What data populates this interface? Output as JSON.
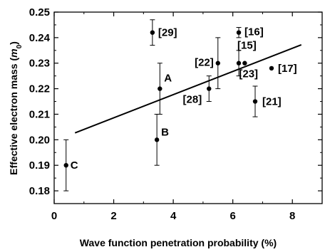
{
  "chart_data": {
    "type": "scatter",
    "xlabel": "Wave function penetration probability (%)",
    "ylabel_main": "Effective electron mass (",
    "ylabel_symbol": "m",
    "ylabel_sub": "0",
    "ylabel_close": ")",
    "xlim": [
      0,
      9
    ],
    "ylim": [
      0.175,
      0.25
    ],
    "xticks": [
      0,
      2,
      4,
      6,
      8
    ],
    "xtick_labels": [
      "0",
      "2",
      "4",
      "6",
      "8"
    ],
    "yticks": [
      0.18,
      0.19,
      0.2,
      0.21,
      0.22,
      0.23,
      0.24,
      0.25
    ],
    "ytick_labels": [
      "0.18",
      "0.19",
      "0.20",
      "0.21",
      "0.22",
      "0.23",
      "0.24",
      "0.25"
    ],
    "points": [
      {
        "x": 0.4,
        "y": 0.19,
        "err": 0.01,
        "label": "C"
      },
      {
        "x": 3.3,
        "y": 0.242,
        "err": 0.005,
        "label": "[29]"
      },
      {
        "x": 3.45,
        "y": 0.2,
        "err": 0.01,
        "label": "B"
      },
      {
        "x": 3.55,
        "y": 0.22,
        "err": 0.01,
        "label": "A"
      },
      {
        "x": 5.2,
        "y": 0.22,
        "err": 0.005,
        "label": "[28]"
      },
      {
        "x": 5.5,
        "y": 0.23,
        "err": 0.01,
        "label": "[22]"
      },
      {
        "x": 6.2,
        "y": 0.242,
        "err": 0.002,
        "label": "[16]"
      },
      {
        "x": 6.2,
        "y": 0.23,
        "err": 0.005,
        "label": "[15]"
      },
      {
        "x": 6.4,
        "y": 0.23,
        "err": 0,
        "label": "[23]"
      },
      {
        "x": 6.75,
        "y": 0.215,
        "err": 0.006,
        "label": "[21]"
      },
      {
        "x": 7.3,
        "y": 0.228,
        "err": 0,
        "label": "[17]"
      }
    ],
    "fit_line": {
      "x": [
        0.7,
        8.3
      ],
      "y": [
        0.2027,
        0.2372
      ]
    }
  }
}
